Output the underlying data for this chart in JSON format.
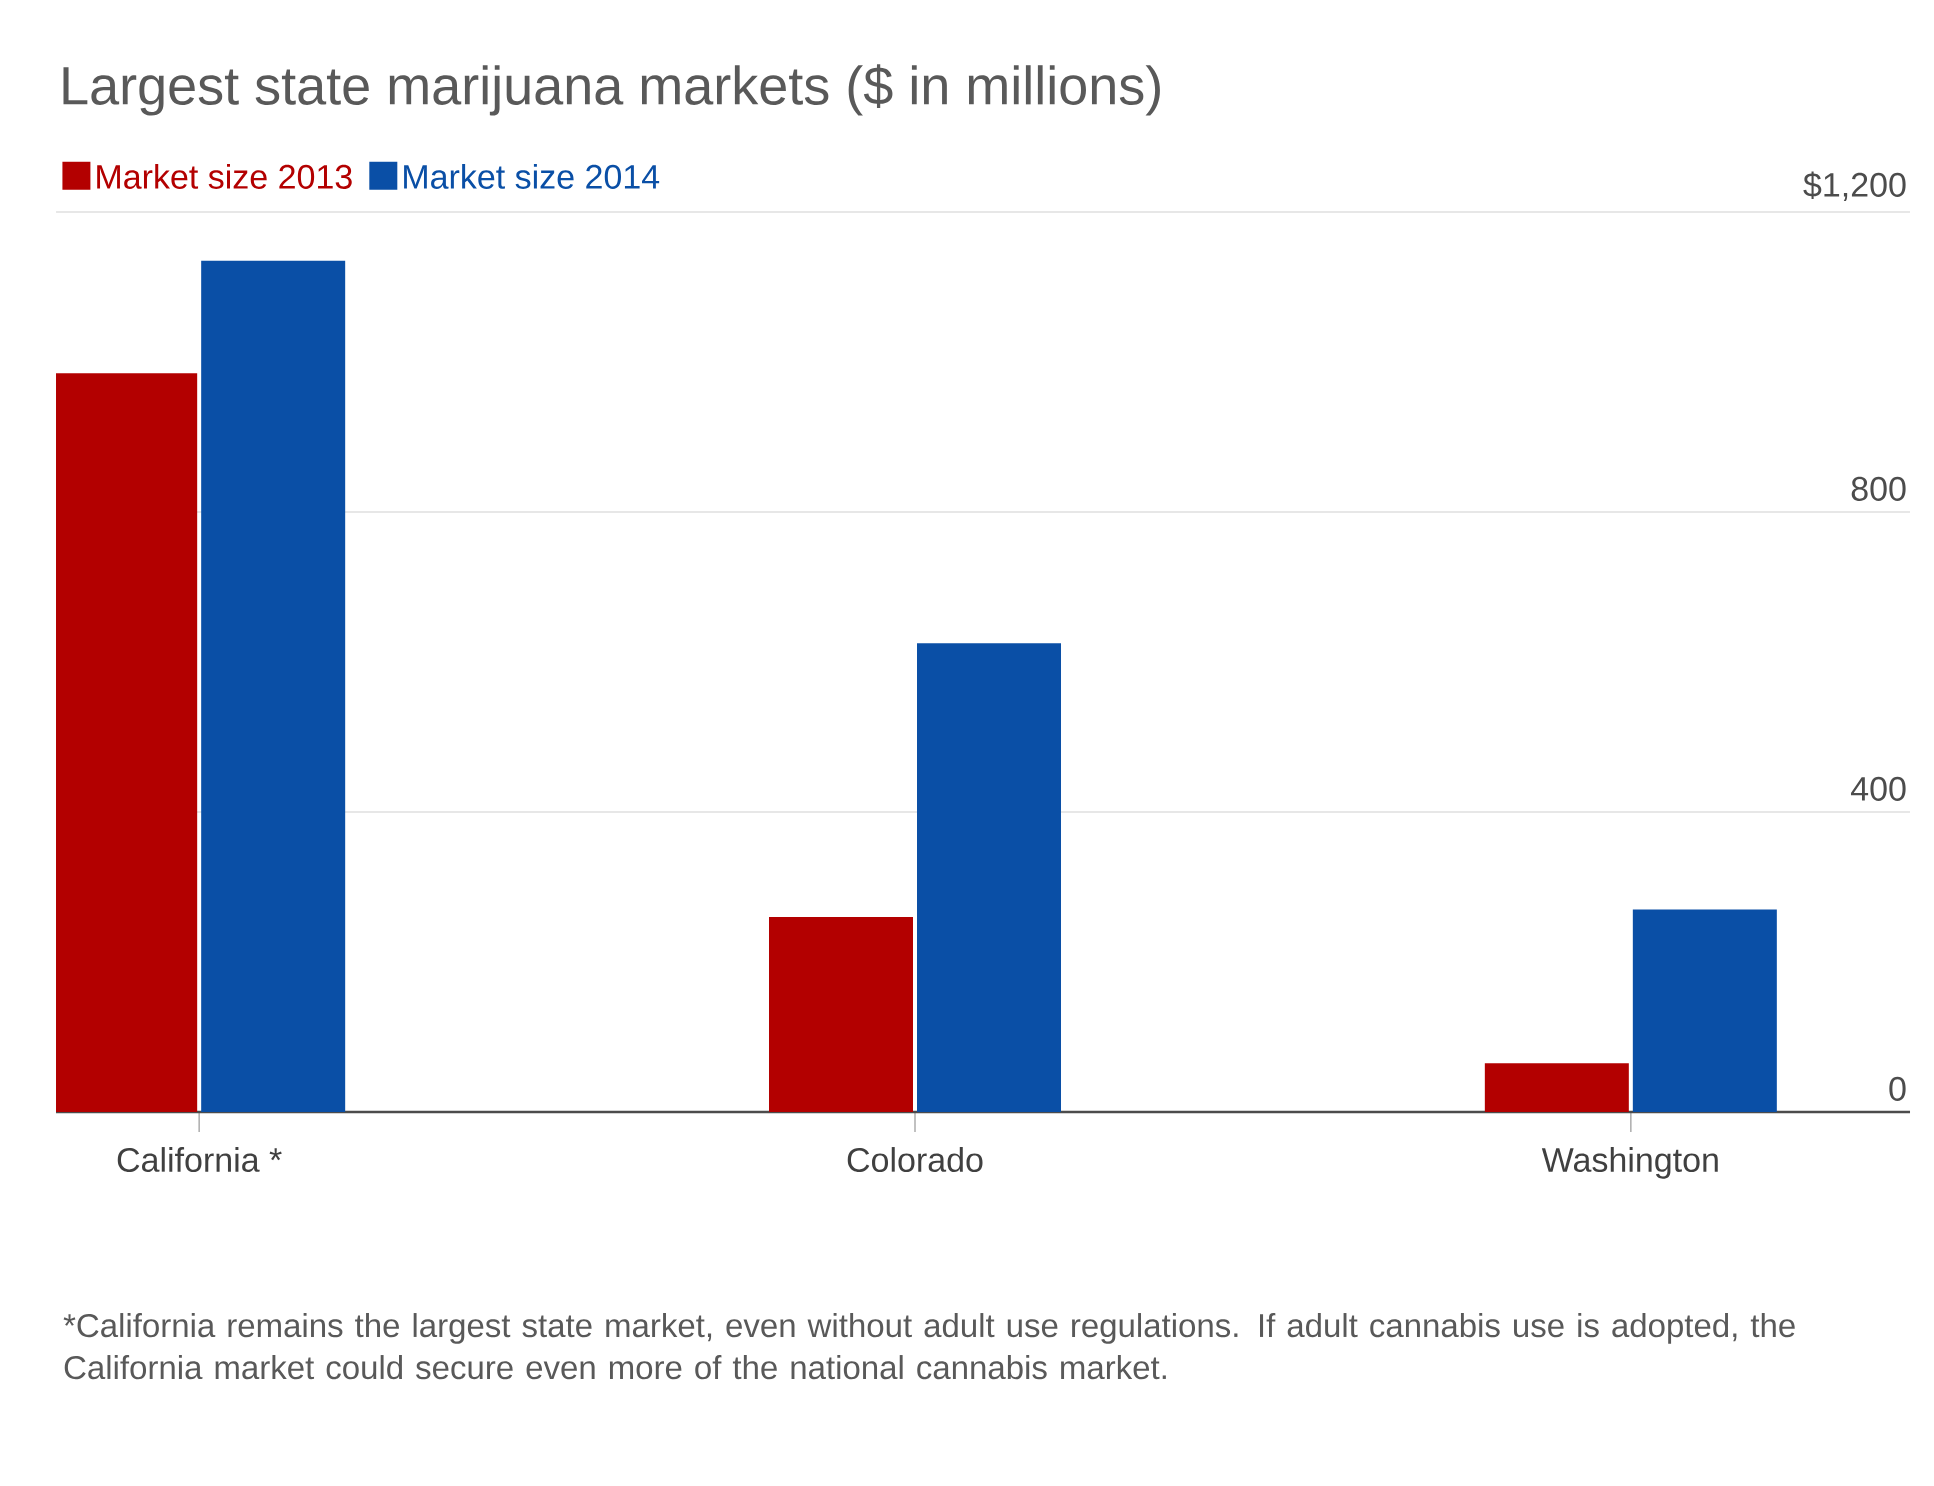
{
  "chart_data": {
    "type": "bar",
    "title": "Largest state marijuana markets ($ in millions)",
    "categories": [
      "California *",
      "Colorado",
      "Washington"
    ],
    "series": [
      {
        "name": "Market size 2013",
        "color": "#b30000",
        "values": [
          985,
          260,
          65
        ]
      },
      {
        "name": "Market size 2014",
        "color": "#0a4fa6",
        "values": [
          1135,
          625,
          270
        ]
      }
    ],
    "ylim": [
      0,
      1200
    ],
    "yticks": [
      0,
      400,
      800,
      {
        "value": 1200,
        "label": "$1,200"
      }
    ],
    "grid": "y",
    "legend": "top left",
    "annotations": [
      "*California remains the largest state market, even without adult use regulations. If adult cannabis use is adopted, the California market could secure even more of the national cannabis market."
    ]
  }
}
